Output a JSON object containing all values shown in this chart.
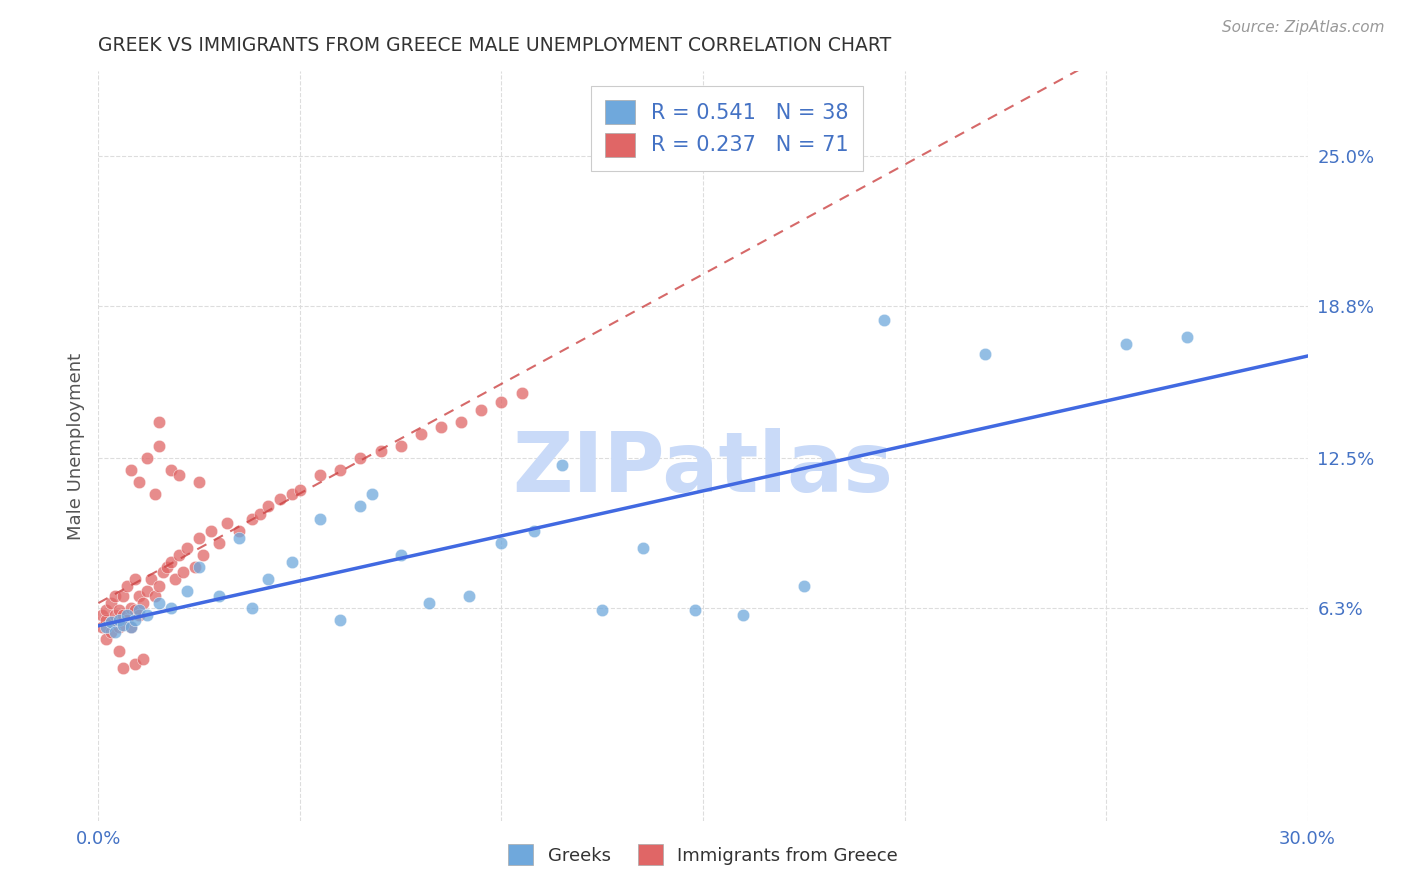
{
  "title": "GREEK VS IMMIGRANTS FROM GREECE MALE UNEMPLOYMENT CORRELATION CHART",
  "source": "Source: ZipAtlas.com",
  "ylabel": "Male Unemployment",
  "xlim": [
    0.0,
    0.3
  ],
  "ylim": [
    -0.025,
    0.285
  ],
  "xtick_values": [
    0.0,
    0.05,
    0.1,
    0.15,
    0.2,
    0.25,
    0.3
  ],
  "xticklabels": [
    "0.0%",
    "",
    "",
    "",
    "",
    "",
    "30.0%"
  ],
  "ytick_values": [
    0.063,
    0.125,
    0.188,
    0.25
  ],
  "ytick_labels": [
    "6.3%",
    "12.5%",
    "18.8%",
    "25.0%"
  ],
  "legend_line1": "R = 0.541   N = 38",
  "legend_line2": "R = 0.237   N = 71",
  "blue_color": "#6fa8dc",
  "pink_color": "#e06666",
  "line_blue": "#4169e1",
  "line_pink": "#cc4444",
  "watermark": "ZIPatlas",
  "watermark_color": "#c9daf8",
  "background": "#ffffff",
  "grid_color": "#dddddd",
  "title_color": "#333333",
  "axis_label_color": "#555555",
  "tick_label_color": "#4472c4",
  "source_color": "#999999",
  "greeks_x": [
    0.002,
    0.003,
    0.004,
    0.005,
    0.006,
    0.007,
    0.008,
    0.009,
    0.01,
    0.012,
    0.015,
    0.018,
    0.022,
    0.025,
    0.03,
    0.035,
    0.038,
    0.042,
    0.048,
    0.055,
    0.06,
    0.065,
    0.068,
    0.075,
    0.082,
    0.092,
    0.1,
    0.108,
    0.115,
    0.125,
    0.135,
    0.148,
    0.16,
    0.175,
    0.195,
    0.22,
    0.255,
    0.27
  ],
  "greeks_y": [
    0.055,
    0.057,
    0.053,
    0.058,
    0.056,
    0.06,
    0.055,
    0.058,
    0.062,
    0.06,
    0.065,
    0.063,
    0.07,
    0.08,
    0.068,
    0.092,
    0.063,
    0.075,
    0.082,
    0.1,
    0.058,
    0.105,
    0.11,
    0.085,
    0.065,
    0.068,
    0.09,
    0.095,
    0.122,
    0.062,
    0.088,
    0.062,
    0.06,
    0.072,
    0.182,
    0.168,
    0.172,
    0.175
  ],
  "immigrants_x": [
    0.001,
    0.001,
    0.002,
    0.002,
    0.002,
    0.003,
    0.003,
    0.003,
    0.004,
    0.004,
    0.005,
    0.005,
    0.005,
    0.006,
    0.006,
    0.007,
    0.007,
    0.008,
    0.008,
    0.009,
    0.009,
    0.01,
    0.01,
    0.011,
    0.012,
    0.013,
    0.014,
    0.015,
    0.015,
    0.016,
    0.017,
    0.018,
    0.019,
    0.02,
    0.021,
    0.022,
    0.024,
    0.025,
    0.026,
    0.028,
    0.03,
    0.032,
    0.035,
    0.038,
    0.04,
    0.042,
    0.045,
    0.048,
    0.05,
    0.055,
    0.06,
    0.065,
    0.07,
    0.075,
    0.08,
    0.085,
    0.09,
    0.095,
    0.1,
    0.105,
    0.012,
    0.015,
    0.018,
    0.02,
    0.025,
    0.008,
    0.01,
    0.014,
    0.006,
    0.009,
    0.011
  ],
  "immigrants_y": [
    0.055,
    0.06,
    0.058,
    0.062,
    0.05,
    0.057,
    0.065,
    0.053,
    0.06,
    0.068,
    0.055,
    0.062,
    0.045,
    0.06,
    0.068,
    0.058,
    0.072,
    0.063,
    0.055,
    0.062,
    0.075,
    0.06,
    0.068,
    0.065,
    0.07,
    0.075,
    0.068,
    0.072,
    0.14,
    0.078,
    0.08,
    0.082,
    0.075,
    0.085,
    0.078,
    0.088,
    0.08,
    0.092,
    0.085,
    0.095,
    0.09,
    0.098,
    0.095,
    0.1,
    0.102,
    0.105,
    0.108,
    0.11,
    0.112,
    0.118,
    0.12,
    0.125,
    0.128,
    0.13,
    0.135,
    0.138,
    0.14,
    0.145,
    0.148,
    0.152,
    0.125,
    0.13,
    0.12,
    0.118,
    0.115,
    0.12,
    0.115,
    0.11,
    0.038,
    0.04,
    0.042
  ]
}
